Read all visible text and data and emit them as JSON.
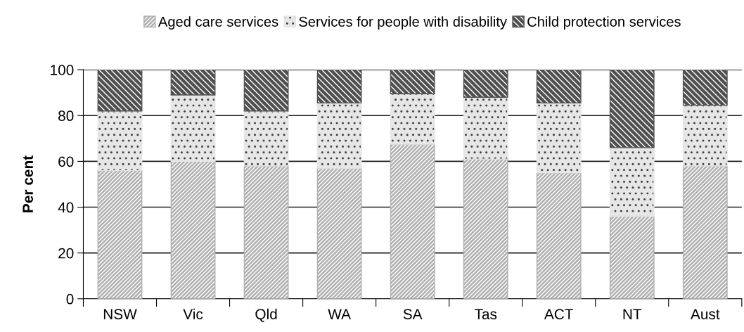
{
  "chart_data": {
    "type": "bar",
    "stacked": true,
    "ylabel": "Per cent",
    "categories": [
      "NSW",
      "Vic",
      "Qld",
      "WA",
      "SA",
      "Tas",
      "ACT",
      "NT",
      "Aust"
    ],
    "series": [
      {
        "name": "Aged care services",
        "color": "#b0b0b0",
        "values": [
          56,
          60,
          58,
          57,
          67.5,
          61,
          55,
          36,
          58
        ]
      },
      {
        "name": "Services for people with disability",
        "color": "#e6e6e6",
        "values": [
          26,
          29,
          24,
          28.5,
          22,
          27,
          30.5,
          30,
          26.5
        ]
      },
      {
        "name": "Child protection services",
        "color": "#505050",
        "values": [
          18,
          11,
          18,
          14.5,
          10.5,
          12,
          14.5,
          34,
          15.5
        ]
      }
    ],
    "ylim": [
      0,
      100
    ],
    "yticks": [
      0,
      20,
      40,
      60,
      80,
      100
    ],
    "grid": "y",
    "legend": "top"
  }
}
